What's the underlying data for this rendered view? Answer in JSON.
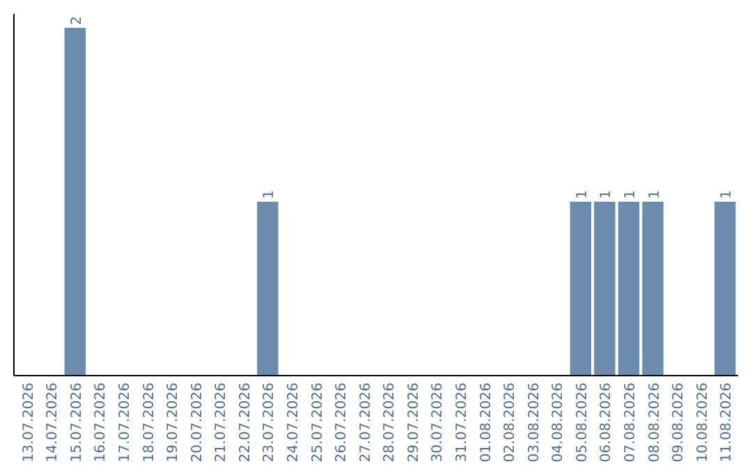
{
  "chart_data": {
    "type": "bar",
    "categories": [
      "13.07.2026",
      "14.07.2026",
      "15.07.2026",
      "16.07.2026",
      "17.07.2026",
      "18.07.2026",
      "19.07.2026",
      "20.07.2026",
      "21.07.2026",
      "22.07.2026",
      "23.07.2026",
      "24.07.2026",
      "25.07.2026",
      "26.07.2026",
      "27.07.2026",
      "28.07.2026",
      "29.07.2026",
      "30.07.2026",
      "31.07.2026",
      "01.08.2026",
      "02.08.2026",
      "03.08.2026",
      "04.08.2026",
      "05.08.2026",
      "06.08.2026",
      "07.08.2026",
      "08.08.2026",
      "09.08.2026",
      "10.08.2026",
      "11.08.2026"
    ],
    "values": [
      0,
      0,
      2,
      0,
      0,
      0,
      0,
      0,
      0,
      0,
      1,
      0,
      0,
      0,
      0,
      0,
      0,
      0,
      0,
      0,
      0,
      0,
      0,
      1,
      1,
      1,
      1,
      0,
      0,
      1
    ],
    "value_labels": [
      null,
      null,
      "2",
      null,
      null,
      null,
      null,
      null,
      null,
      null,
      "1",
      null,
      null,
      null,
      null,
      null,
      null,
      null,
      null,
      null,
      null,
      null,
      null,
      "1",
      "1",
      "1",
      "1",
      null,
      null,
      "1"
    ],
    "color": "#6b8cad",
    "tick_labels": "x"
  }
}
